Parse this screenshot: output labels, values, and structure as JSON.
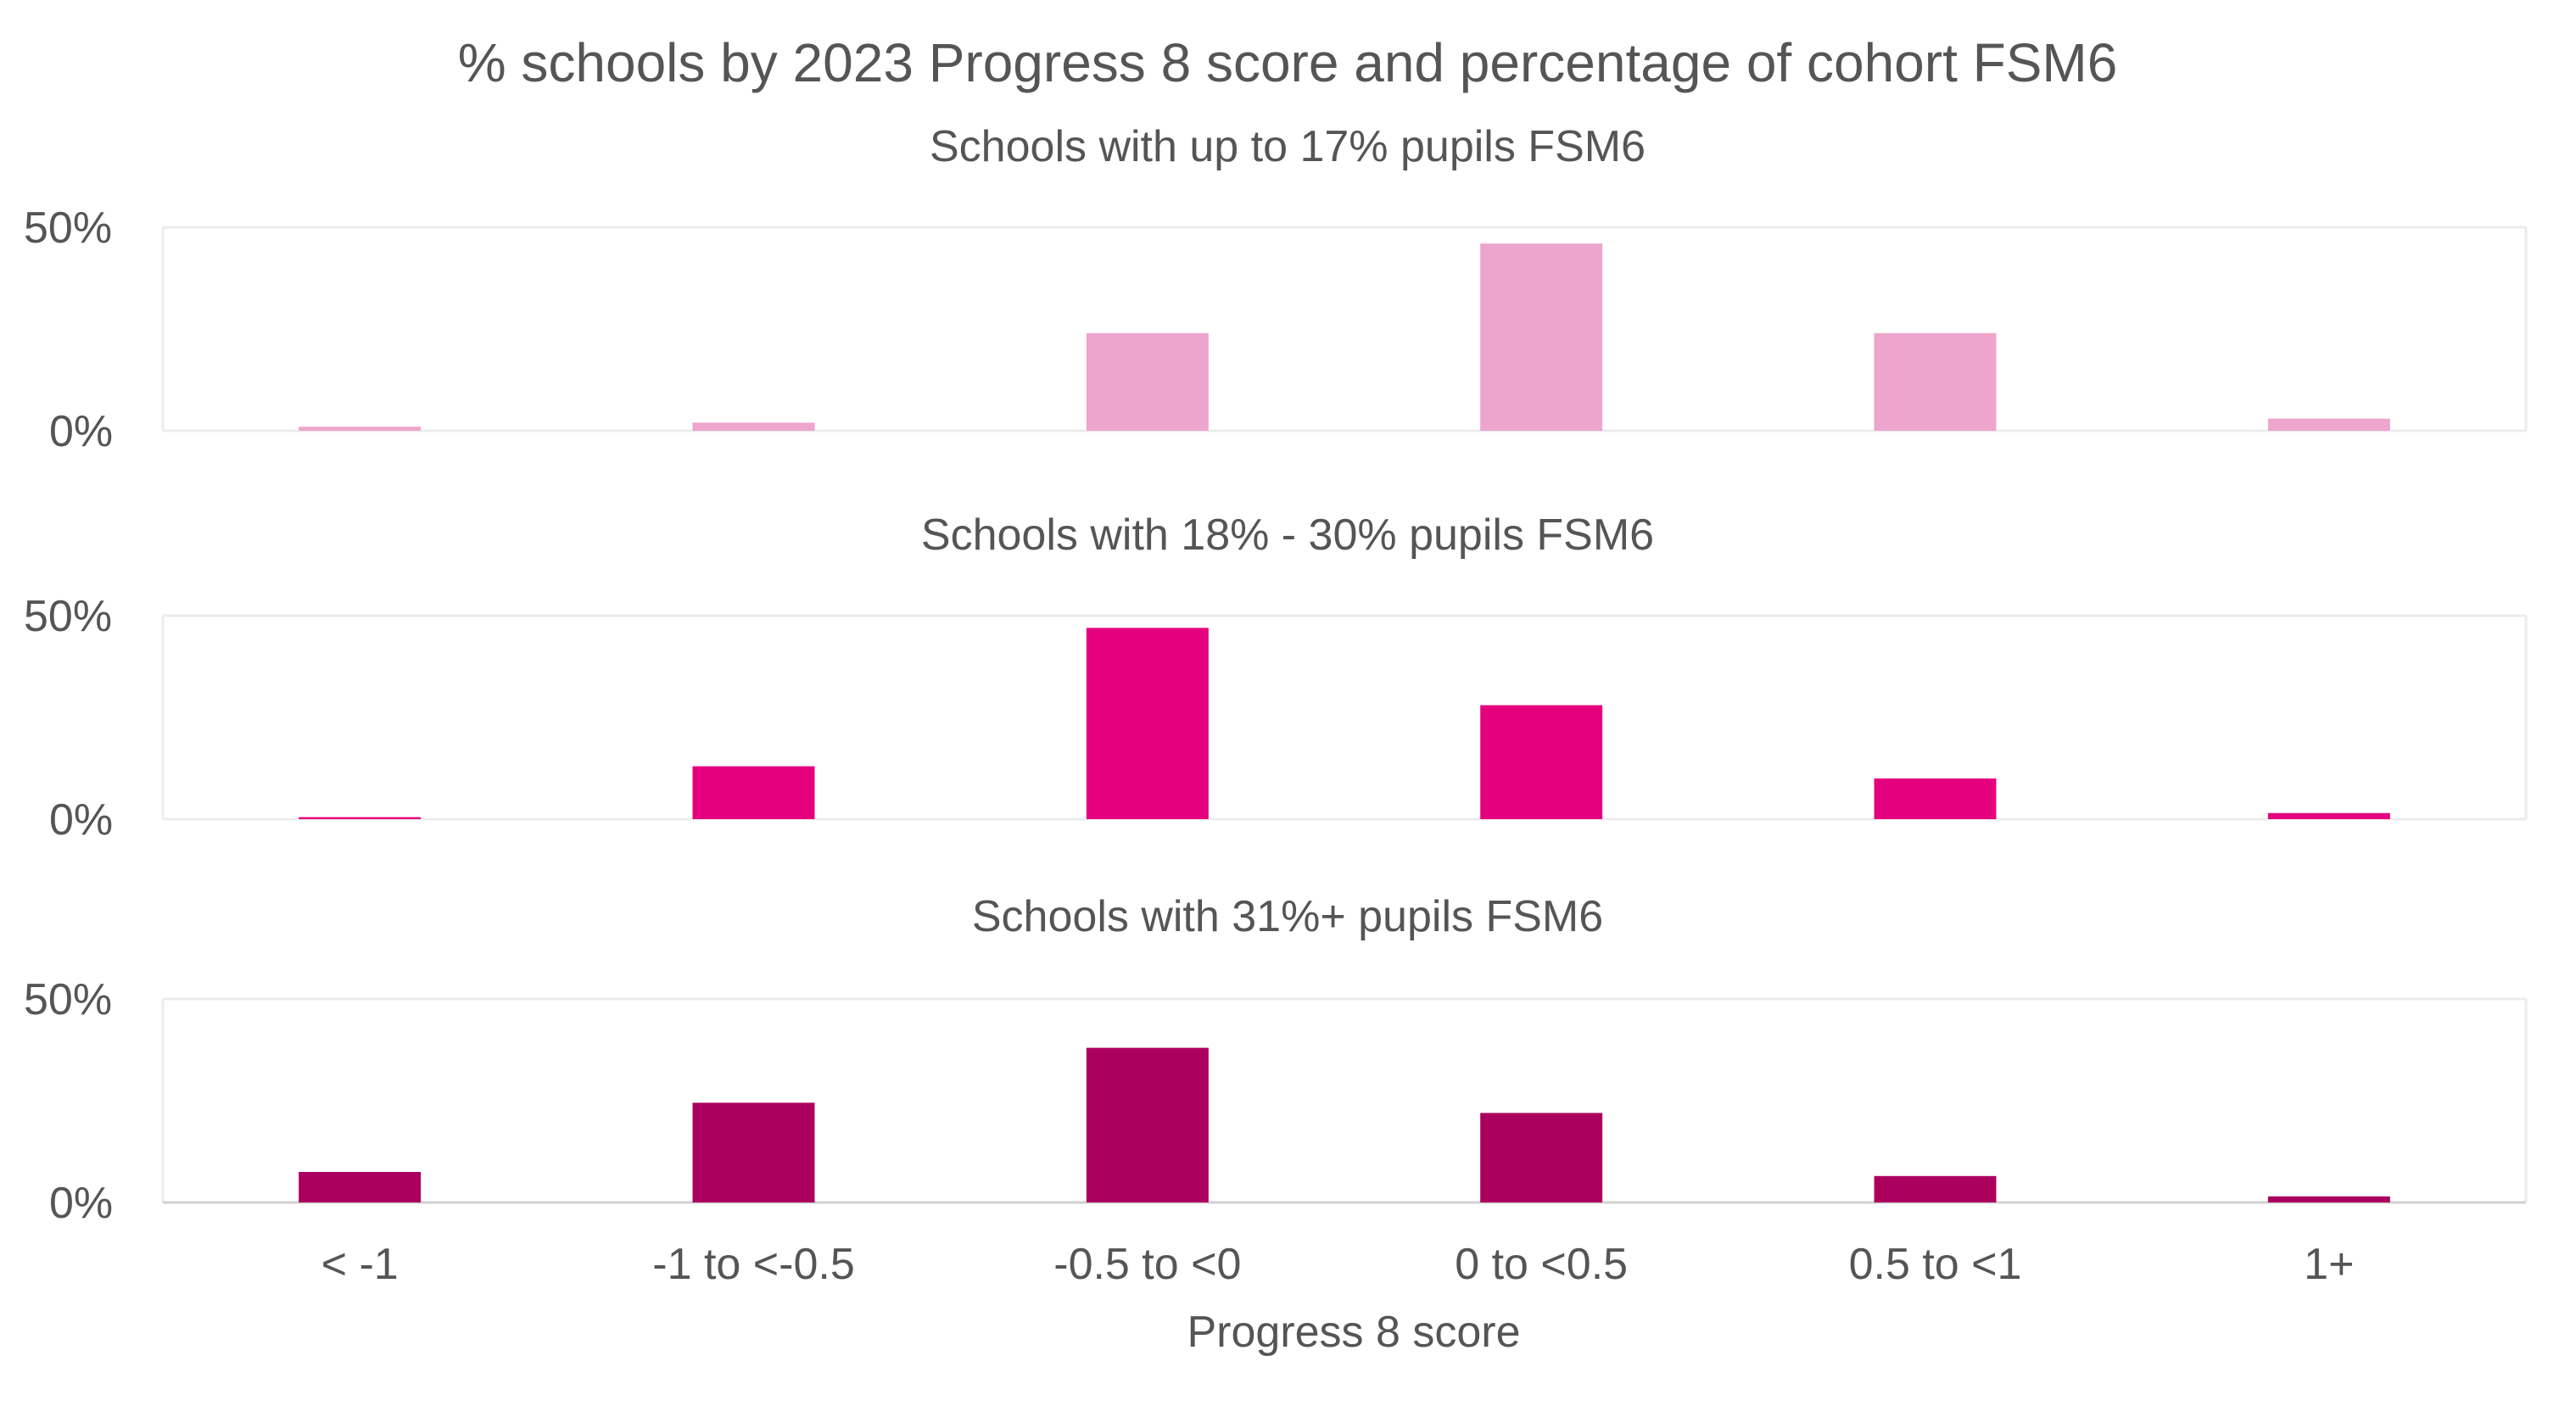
{
  "chart_data": {
    "type": "bar",
    "title": "% schools by 2023 Progress 8 score and percentage of cohort FSM6",
    "xlabel": "Progress 8 score",
    "ylabel": "",
    "categories": [
      "< -1",
      "-1 to <-0.5",
      "-0.5 to <0",
      "0 to <0.5",
      "0.5 to <1",
      "1+"
    ],
    "y_ticks": [
      "50%",
      "0%"
    ],
    "ylim": [
      0,
      50
    ],
    "grid": true,
    "legend": "none",
    "panels": [
      {
        "subtitle": "Schools with up to 17% pupils FSM6",
        "color": "#EEA5CD",
        "values": [
          1,
          2,
          24,
          46,
          24,
          3
        ]
      },
      {
        "subtitle": "Schools with 18% - 30% pupils FSM6",
        "color": "#E5007D",
        "values": [
          0.5,
          13,
          47,
          28,
          10,
          1.5
        ]
      },
      {
        "subtitle": "Schools with 31%+ pupils FSM6",
        "color": "#AC005E",
        "values": [
          7.5,
          24.5,
          38,
          22,
          6.5,
          1.5
        ]
      }
    ]
  }
}
